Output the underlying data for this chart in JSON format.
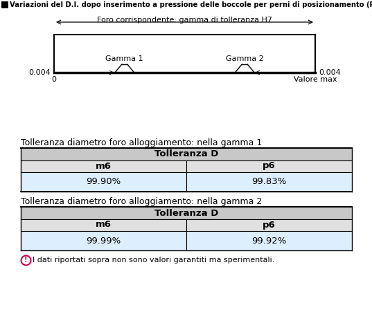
{
  "title": "Variazioni del D.I. dopo inserimento a pressione delle boccole per perni di posizionamento (Riferimento)",
  "title_box_color": "#000000",
  "bg_color": "#ffffff",
  "diagram": {
    "h7_label": "Foro corrispondente: gamma di tolleranza H7",
    "gamma1_label": "Gamma 1",
    "gamma2_label": "Gamma 2",
    "left_value": "0.004",
    "right_value": "0.004",
    "bottom_left_label": "0",
    "bottom_right_label": "Valore max"
  },
  "table1": {
    "title": "Tolleranza diametro foro alloggiamento: nella gamma 1",
    "header": "Tolleranza D",
    "col1": "m6",
    "col2": "p6",
    "val1": "99.90%",
    "val2": "99.83%"
  },
  "table2": {
    "title": "Tolleranza diametro foro alloggiamento: nella gamma 2",
    "header": "Tolleranza D",
    "col1": "m6",
    "col2": "p6",
    "val1": "99.99%",
    "val2": "99.92%"
  },
  "footer": "I dati riportati sopra non sono valori garantiti ma sperimentali.",
  "fs_title": 7.2,
  "fs_diagram": 8.0,
  "fs_table_title": 9.0,
  "fs_table": 9.5
}
